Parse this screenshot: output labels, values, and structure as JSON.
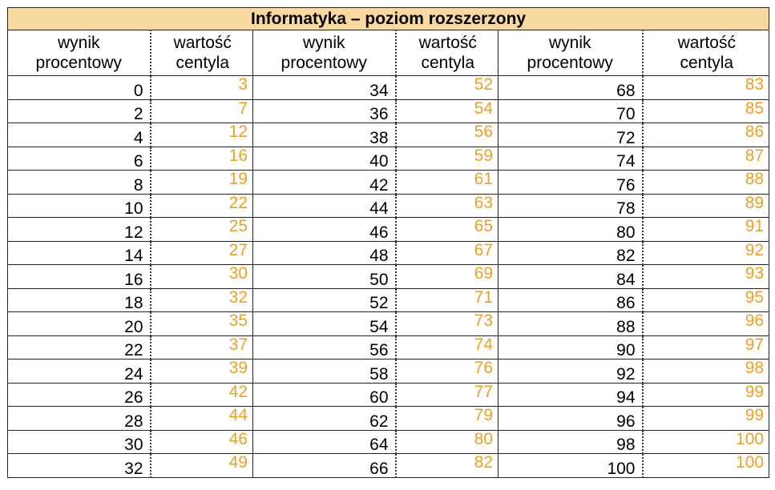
{
  "title": "Informatyka – poziom rozszerzony",
  "headers": {
    "score_line1": "wynik",
    "score_line2": "procentowy",
    "centile_line1": "wartość",
    "centile_line2": "centyla"
  },
  "colors": {
    "title_background": "#f8d9a0",
    "centile_text": "#f0a020",
    "score_text": "#000000"
  },
  "rows": [
    {
      "s1": "0",
      "c1": "3",
      "s2": "34",
      "c2": "52",
      "s3": "68",
      "c3": "83"
    },
    {
      "s1": "2",
      "c1": "7",
      "s2": "36",
      "c2": "54",
      "s3": "70",
      "c3": "85"
    },
    {
      "s1": "4",
      "c1": "12",
      "s2": "38",
      "c2": "56",
      "s3": "72",
      "c3": "86"
    },
    {
      "s1": "6",
      "c1": "16",
      "s2": "40",
      "c2": "59",
      "s3": "74",
      "c3": "87"
    },
    {
      "s1": "8",
      "c1": "19",
      "s2": "42",
      "c2": "61",
      "s3": "76",
      "c3": "88"
    },
    {
      "s1": "10",
      "c1": "22",
      "s2": "44",
      "c2": "63",
      "s3": "78",
      "c3": "89"
    },
    {
      "s1": "12",
      "c1": "25",
      "s2": "46",
      "c2": "65",
      "s3": "80",
      "c3": "91"
    },
    {
      "s1": "14",
      "c1": "27",
      "s2": "48",
      "c2": "67",
      "s3": "82",
      "c3": "92"
    },
    {
      "s1": "16",
      "c1": "30",
      "s2": "50",
      "c2": "69",
      "s3": "84",
      "c3": "93"
    },
    {
      "s1": "18",
      "c1": "32",
      "s2": "52",
      "c2": "71",
      "s3": "86",
      "c3": "95"
    },
    {
      "s1": "20",
      "c1": "35",
      "s2": "54",
      "c2": "73",
      "s3": "88",
      "c3": "96"
    },
    {
      "s1": "22",
      "c1": "37",
      "s2": "56",
      "c2": "74",
      "s3": "90",
      "c3": "97"
    },
    {
      "s1": "24",
      "c1": "39",
      "s2": "58",
      "c2": "76",
      "s3": "92",
      "c3": "98"
    },
    {
      "s1": "26",
      "c1": "42",
      "s2": "60",
      "c2": "77",
      "s3": "94",
      "c3": "99"
    },
    {
      "s1": "28",
      "c1": "44",
      "s2": "62",
      "c2": "79",
      "s3": "96",
      "c3": "99"
    },
    {
      "s1": "30",
      "c1": "46",
      "s2": "64",
      "c2": "80",
      "s3": "98",
      "c3": "100"
    },
    {
      "s1": "32",
      "c1": "49",
      "s2": "66",
      "c2": "82",
      "s3": "100",
      "c3": "100"
    }
  ]
}
